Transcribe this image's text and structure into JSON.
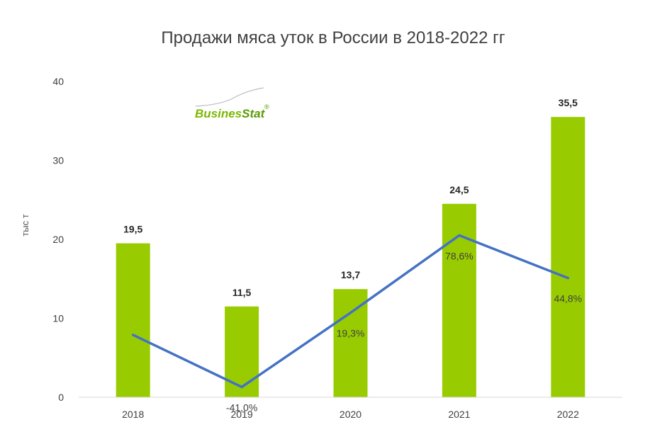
{
  "chart_data": {
    "type": "bar",
    "title": "Продажи мяса уток в России в  2018-2022 гг",
    "ylabel": "тыс т",
    "xlabel": "",
    "ylim": [
      0,
      40
    ],
    "yticks": [
      0,
      10,
      20,
      30,
      40
    ],
    "categories": [
      "2018",
      "2019",
      "2020",
      "2021",
      "2022"
    ],
    "series": [
      {
        "type": "bar",
        "values": [
          19.5,
          11.5,
          13.7,
          24.5,
          35.5
        ],
        "labels": [
          "19,5",
          "11,5",
          "13,7",
          "24,5",
          "35,5"
        ],
        "color": "#99CC00"
      },
      {
        "type": "line",
        "values": [
          7.9,
          1.3,
          10.7,
          20.5,
          15.1
        ],
        "labels": [
          "",
          "-41,0%",
          "19,3%",
          "78,6%",
          "44,8%"
        ],
        "color": "#4472C4"
      }
    ],
    "grid": false,
    "legend": "none"
  },
  "logo": {
    "text_part1": "Busines",
    "text_part2": "Stat",
    "mark": "®",
    "color1": "#7AB800",
    "color2": "#5A9A00"
  }
}
